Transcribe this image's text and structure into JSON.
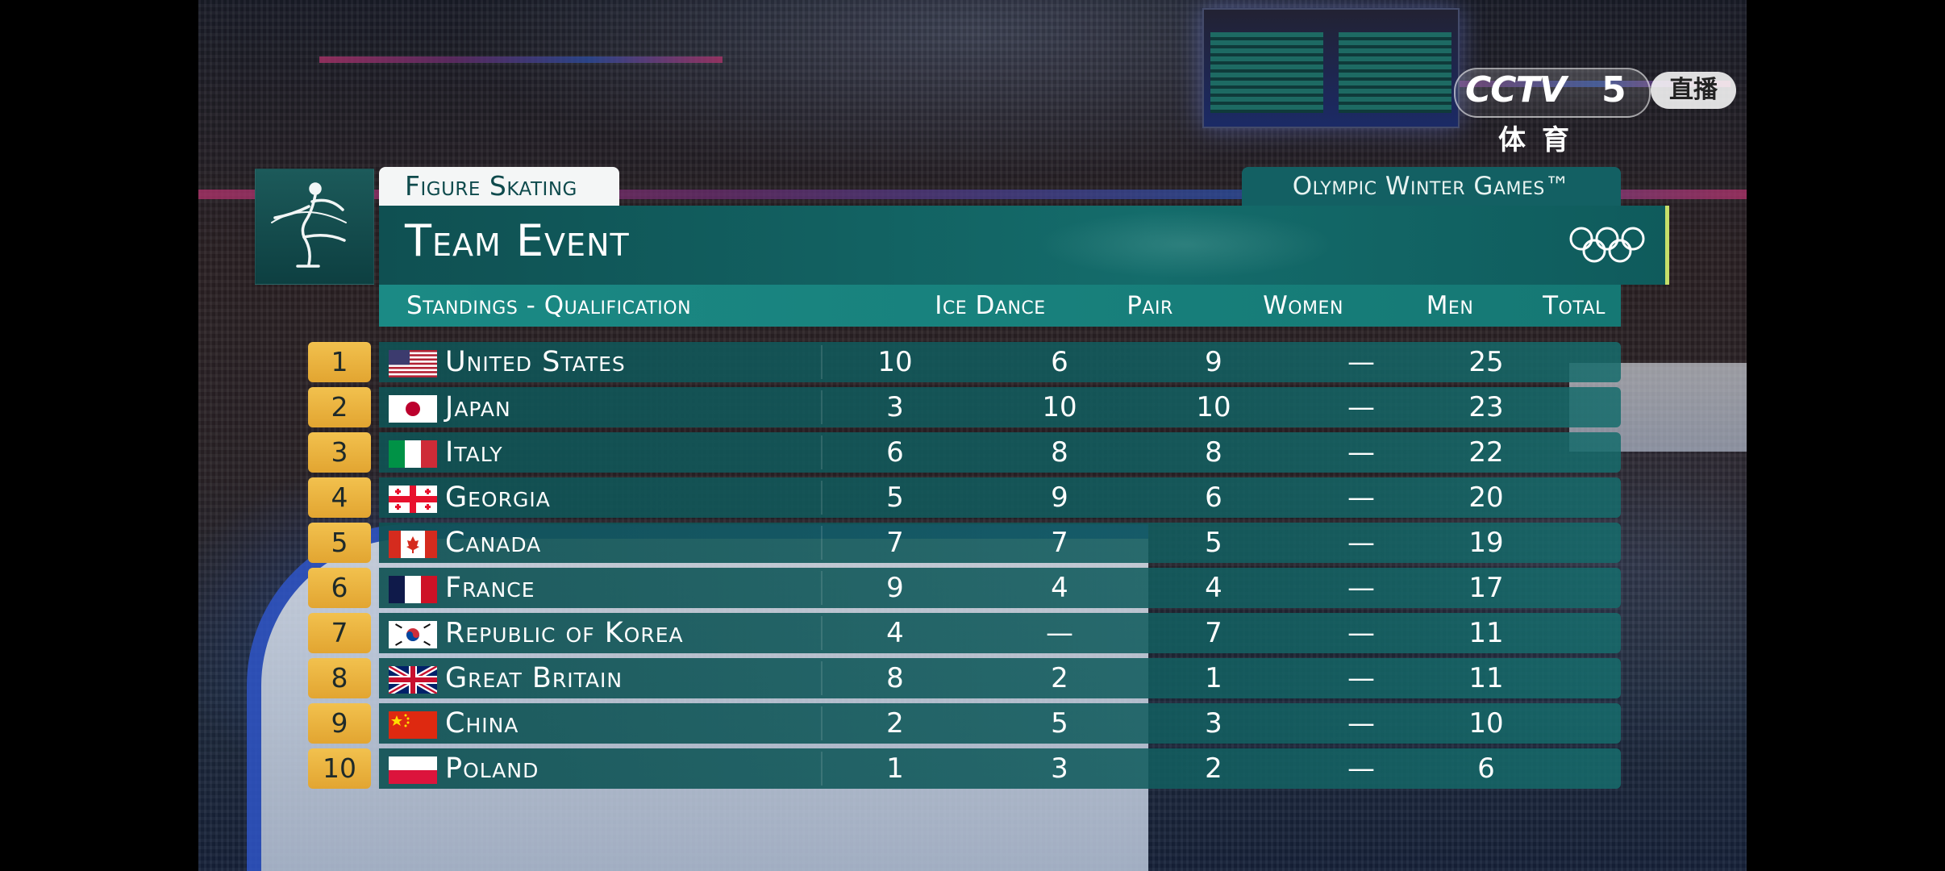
{
  "broadcaster": {
    "logo": "CCTV",
    "channel": "5",
    "live_label": "直播",
    "sub_label": "体育"
  },
  "graphic": {
    "sport": "Figure Skating",
    "games": "Olympic Winter Games™",
    "title": "Team Event",
    "sport_icon": "figure-skater-icon",
    "rings_icon": "olympic-rings-icon",
    "header": {
      "label": "Standings - Qualification",
      "columns": [
        "Ice Dance",
        "Pair",
        "Women",
        "Men",
        "Total"
      ]
    },
    "rows": [
      {
        "rank": "1",
        "country": "United States",
        "flag": "us",
        "ice_dance": "10",
        "pair": "6",
        "women": "9",
        "men": "—",
        "total": "25"
      },
      {
        "rank": "2",
        "country": "Japan",
        "flag": "jp",
        "ice_dance": "3",
        "pair": "10",
        "women": "10",
        "men": "—",
        "total": "23"
      },
      {
        "rank": "3",
        "country": "Italy",
        "flag": "it",
        "ice_dance": "6",
        "pair": "8",
        "women": "8",
        "men": "—",
        "total": "22"
      },
      {
        "rank": "4",
        "country": "Georgia",
        "flag": "ge",
        "ice_dance": "5",
        "pair": "9",
        "women": "6",
        "men": "—",
        "total": "20"
      },
      {
        "rank": "5",
        "country": "Canada",
        "flag": "ca",
        "ice_dance": "7",
        "pair": "7",
        "women": "5",
        "men": "—",
        "total": "19"
      },
      {
        "rank": "6",
        "country": "France",
        "flag": "fr",
        "ice_dance": "9",
        "pair": "4",
        "women": "4",
        "men": "—",
        "total": "17"
      },
      {
        "rank": "7",
        "country": "Republic of Korea",
        "flag": "kr",
        "ice_dance": "4",
        "pair": "—",
        "women": "7",
        "men": "—",
        "total": "11"
      },
      {
        "rank": "8",
        "country": "Great Britain",
        "flag": "gb",
        "ice_dance": "8",
        "pair": "2",
        "women": "1",
        "men": "—",
        "total": "11"
      },
      {
        "rank": "9",
        "country": "China",
        "flag": "cn",
        "ice_dance": "2",
        "pair": "5",
        "women": "3",
        "men": "—",
        "total": "10"
      },
      {
        "rank": "10",
        "country": "Poland",
        "flag": "pl",
        "ice_dance": "1",
        "pair": "3",
        "women": "2",
        "men": "—",
        "total": "6"
      }
    ]
  },
  "colors": {
    "teal_dark": "#0e4a4c",
    "teal_header": "#1b8a85",
    "rank_gold": "#f2c14e",
    "accent_lime": "#c6e06a"
  }
}
